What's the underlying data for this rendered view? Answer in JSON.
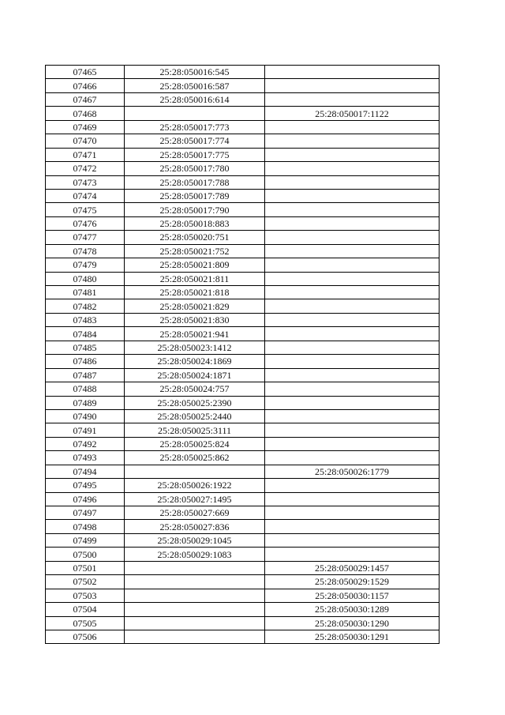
{
  "table": {
    "rows": [
      [
        "07465",
        "25:28:050016:545",
        ""
      ],
      [
        "07466",
        "25:28:050016:587",
        ""
      ],
      [
        "07467",
        "25:28:050016:614",
        ""
      ],
      [
        "07468",
        "",
        "25:28:050017:1122"
      ],
      [
        "07469",
        "25:28:050017:773",
        ""
      ],
      [
        "07470",
        "25:28:050017:774",
        ""
      ],
      [
        "07471",
        "25:28:050017:775",
        ""
      ],
      [
        "07472",
        "25:28:050017:780",
        ""
      ],
      [
        "07473",
        "25:28:050017:788",
        ""
      ],
      [
        "07474",
        "25:28:050017:789",
        ""
      ],
      [
        "07475",
        "25:28:050017:790",
        ""
      ],
      [
        "07476",
        "25:28:050018:883",
        ""
      ],
      [
        "07477",
        "25:28:050020:751",
        ""
      ],
      [
        "07478",
        "25:28:050021:752",
        ""
      ],
      [
        "07479",
        "25:28:050021:809",
        ""
      ],
      [
        "07480",
        "25:28:050021:811",
        ""
      ],
      [
        "07481",
        "25:28:050021:818",
        ""
      ],
      [
        "07482",
        "25:28:050021:829",
        ""
      ],
      [
        "07483",
        "25:28:050021:830",
        ""
      ],
      [
        "07484",
        "25:28:050021:941",
        ""
      ],
      [
        "07485",
        "25:28:050023:1412",
        ""
      ],
      [
        "07486",
        "25:28:050024:1869",
        ""
      ],
      [
        "07487",
        "25:28:050024:1871",
        ""
      ],
      [
        "07488",
        "25:28:050024:757",
        ""
      ],
      [
        "07489",
        "25:28:050025:2390",
        ""
      ],
      [
        "07490",
        "25:28:050025:2440",
        ""
      ],
      [
        "07491",
        "25:28:050025:3111",
        ""
      ],
      [
        "07492",
        "25:28:050025:824",
        ""
      ],
      [
        "07493",
        "25:28:050025:862",
        ""
      ],
      [
        "07494",
        "",
        "25:28:050026:1779"
      ],
      [
        "07495",
        "25:28:050026:1922",
        ""
      ],
      [
        "07496",
        "25:28:050027:1495",
        ""
      ],
      [
        "07497",
        "25:28:050027:669",
        ""
      ],
      [
        "07498",
        "25:28:050027:836",
        ""
      ],
      [
        "07499",
        "25:28:050029:1045",
        ""
      ],
      [
        "07500",
        "25:28:050029:1083",
        ""
      ],
      [
        "07501",
        "",
        "25:28:050029:1457"
      ],
      [
        "07502",
        "",
        "25:28:050029:1529"
      ],
      [
        "07503",
        "",
        "25:28:050030:1157"
      ],
      [
        "07504",
        "",
        "25:28:050030:1289"
      ],
      [
        "07505",
        "",
        "25:28:050030:1290"
      ],
      [
        "07506",
        "",
        "25:28:050030:1291"
      ]
    ]
  }
}
